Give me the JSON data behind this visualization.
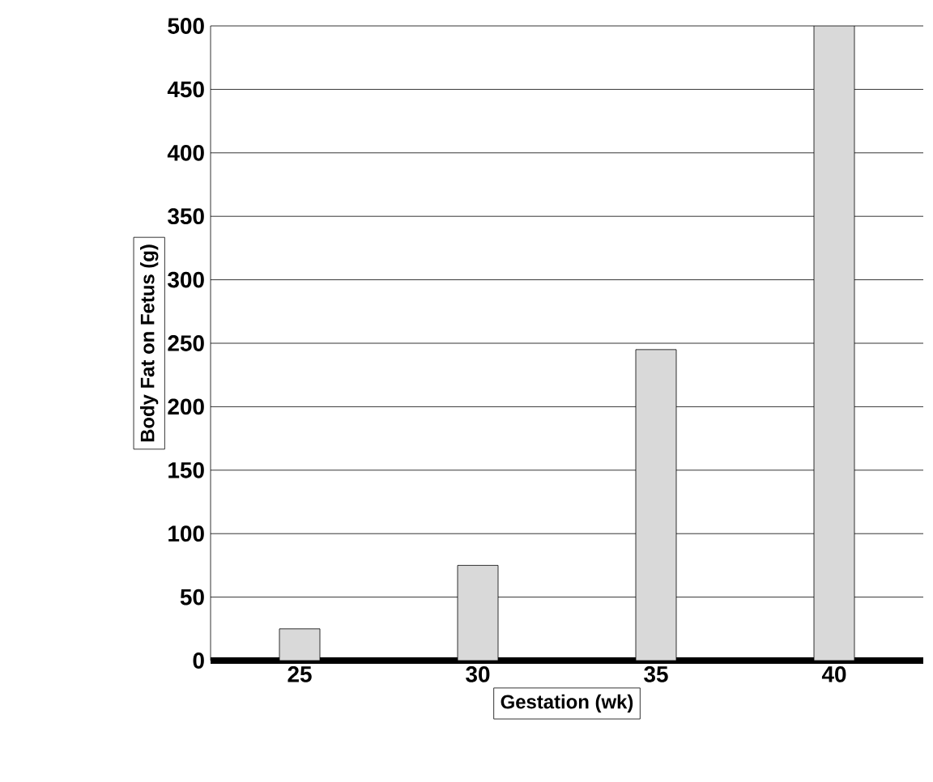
{
  "chart_data": {
    "type": "bar",
    "xlabel": "Gestation (wk)",
    "ylabel": "Body Fat on Fetus (g)",
    "categories": [
      "25",
      "30",
      "35",
      "40"
    ],
    "values": [
      25,
      75,
      245,
      500
    ],
    "color": "#d9d9d9",
    "ylim": [
      0,
      500
    ],
    "yticks": [
      0,
      50,
      100,
      150,
      200,
      250,
      300,
      350,
      400,
      450,
      500
    ],
    "grid": "y"
  }
}
